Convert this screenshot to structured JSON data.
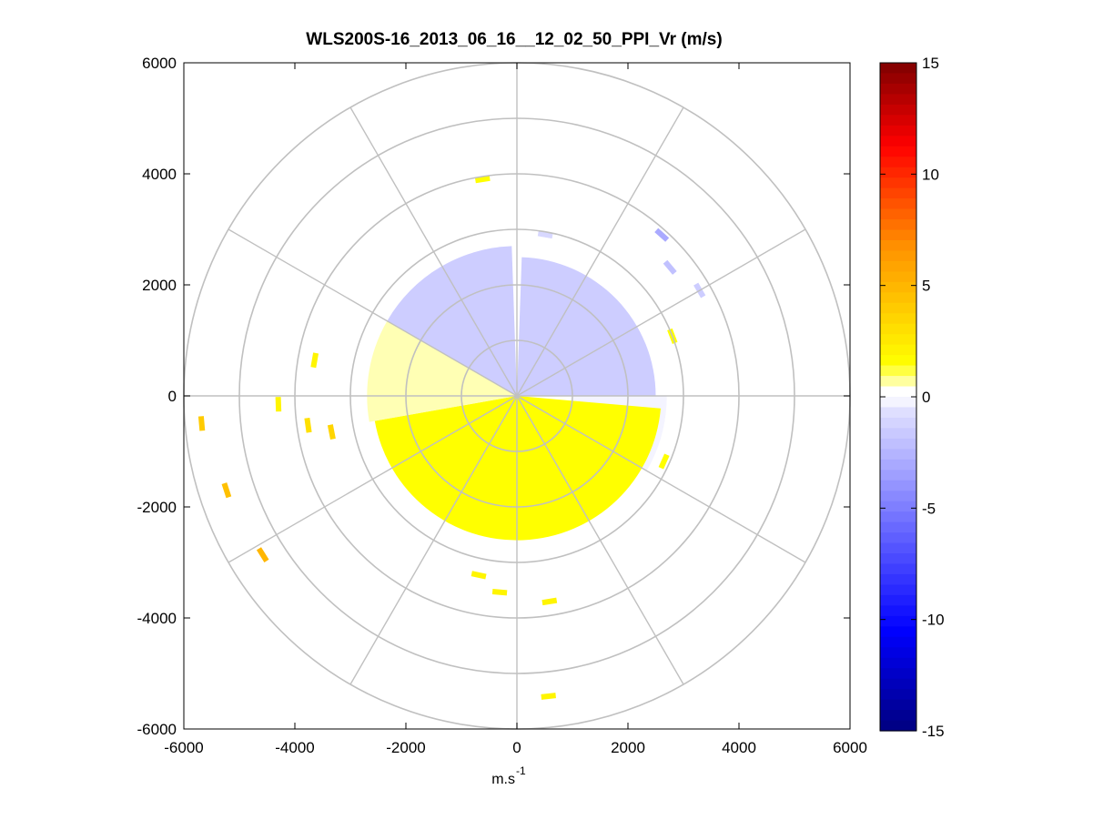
{
  "chart_data": {
    "type": "ppi-polar-scan",
    "title": "WLS200S-16_2013_06_16__12_02_50_PPI_Vr (m/s)",
    "xlabel": "m.s",
    "xlabel_sup": "-1",
    "ylabel": "",
    "xlim": [
      -6000,
      6000
    ],
    "ylim": [
      -6000,
      6000
    ],
    "xticks": [
      "-6000",
      "-4000",
      "-2000",
      "0",
      "2000",
      "4000",
      "6000"
    ],
    "yticks": [
      "6000",
      "4000",
      "2000",
      "0",
      "-2000",
      "-4000",
      "-6000"
    ],
    "grid": "polar",
    "range_rings_m": [
      1000,
      2000,
      3000,
      4000,
      5000,
      6000
    ],
    "azimuth_spokes_deg": [
      0,
      30,
      60,
      90,
      120,
      150,
      180,
      210,
      240,
      270,
      300,
      330
    ],
    "colorbar": {
      "range": [
        -15,
        15
      ],
      "ticks": [
        "15",
        "10",
        "5",
        "0",
        "-5",
        "-10",
        "-15"
      ],
      "colormap": "blue-white-yellow-red",
      "colors": {
        "negative_max": "#00007f",
        "negative_mid": "#3b3bff",
        "near_zero": "#ffffff",
        "positive_low": "#ffff00",
        "positive_mid": "#ff9900",
        "positive_max": "#7f0000"
      }
    },
    "velocity_units": "m/s",
    "sectors": [
      {
        "az_start": -60,
        "az_end": -2,
        "range_start": 0,
        "range_end": 2700,
        "vr": -1.5
      },
      {
        "az_start": 2,
        "az_end": 90,
        "range_start": 0,
        "range_end": 2500,
        "vr": -1.5
      },
      {
        "az_start": 90,
        "az_end": 120,
        "range_start": 1000,
        "range_end": 2700,
        "vr": -0.4
      },
      {
        "az_start": 95,
        "az_end": 260,
        "range_start": 0,
        "range_end": 2600,
        "vr": 1.5
      },
      {
        "az_start": 260,
        "az_end": 300,
        "range_start": 0,
        "range_end": 2700,
        "vr": 0.6
      }
    ],
    "scattered_gates": [
      {
        "az": 265,
        "r": 5700,
        "vr": 4.0
      },
      {
        "az": 252,
        "r": 5500,
        "vr": 4.5
      },
      {
        "az": 238,
        "r": 5400,
        "vr": 5.0
      },
      {
        "az": 268,
        "r": 4300,
        "vr": 2.0
      },
      {
        "az": 262,
        "r": 3800,
        "vr": 3.0
      },
      {
        "az": 259,
        "r": 3400,
        "vr": 3.5
      },
      {
        "az": 280,
        "r": 3700,
        "vr": 2.0
      },
      {
        "az": 192,
        "r": 3300,
        "vr": 2.0
      },
      {
        "az": 185,
        "r": 3550,
        "vr": 2.0
      },
      {
        "az": 171,
        "r": 3750,
        "vr": 2.0
      },
      {
        "az": 174,
        "r": 5440,
        "vr": 2.0
      },
      {
        "az": 351,
        "r": 3950,
        "vr": 1.5
      },
      {
        "az": 42,
        "r": 3900,
        "vr": -3.0
      },
      {
        "az": 50,
        "r": 3600,
        "vr": -2.0
      },
      {
        "az": 60,
        "r": 3800,
        "vr": -1.5
      },
      {
        "az": 69,
        "r": 3000,
        "vr": 1.5
      },
      {
        "az": 10,
        "r": 2950,
        "vr": -1.0
      },
      {
        "az": 114,
        "r": 2900,
        "vr": 1.5
      }
    ]
  }
}
